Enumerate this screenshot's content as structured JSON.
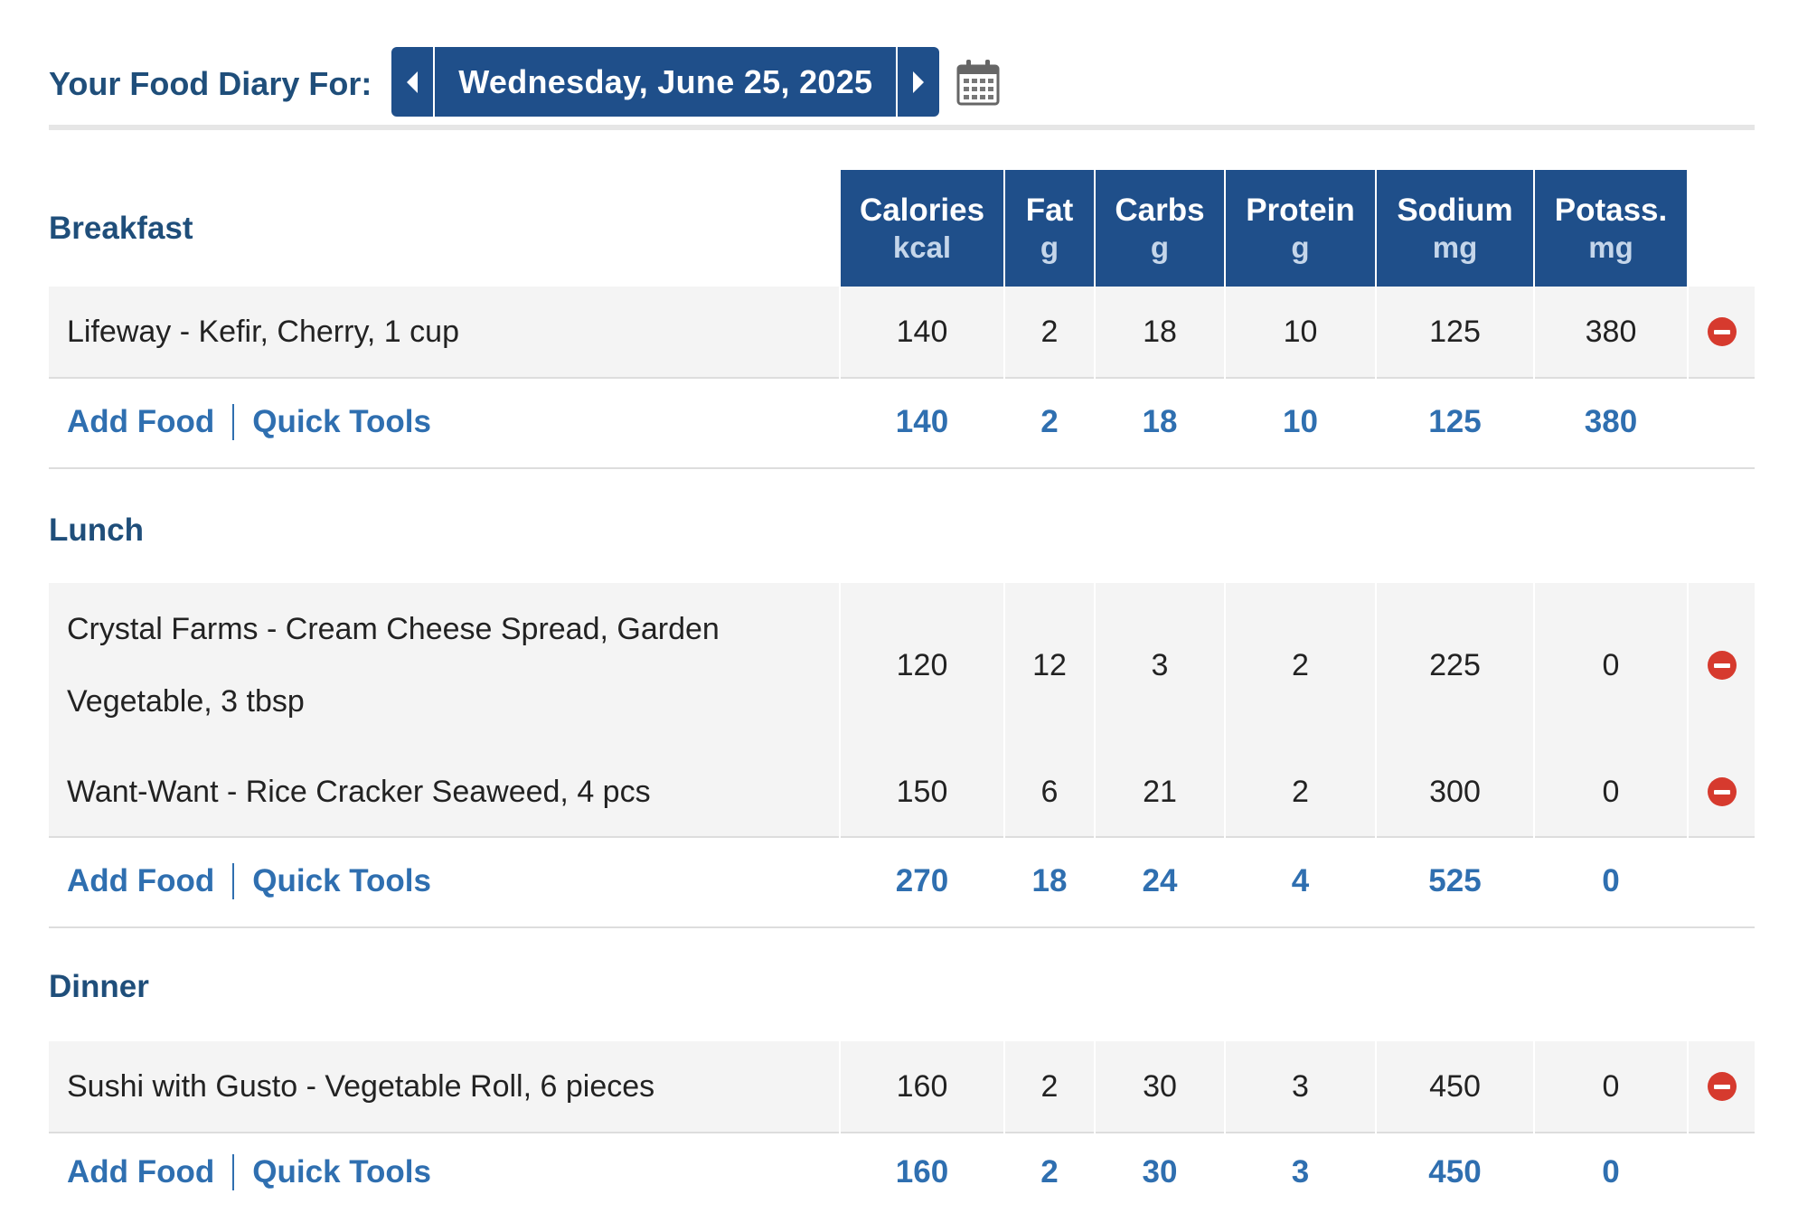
{
  "header": {
    "label": "Your Food Diary For:",
    "date": "Wednesday, June 25, 2025",
    "prev_icon": "triangle-left-icon",
    "next_icon": "triangle-right-icon",
    "calendar_icon": "calendar-icon"
  },
  "columns": [
    {
      "title": "Calories",
      "unit": "kcal"
    },
    {
      "title": "Fat",
      "unit": "g"
    },
    {
      "title": "Carbs",
      "unit": "g"
    },
    {
      "title": "Protein",
      "unit": "g"
    },
    {
      "title": "Sodium",
      "unit": "mg"
    },
    {
      "title": "Potass.",
      "unit": "mg"
    }
  ],
  "links": {
    "add_food": "Add Food",
    "quick_tools": "Quick Tools"
  },
  "colors": {
    "header_blue": "#1f4f8a",
    "link_blue": "#2f6fb0",
    "delete_red": "#d63a2e"
  },
  "meals": [
    {
      "name": "Breakfast",
      "foods": [
        {
          "name": "Lifeway - Kefir, Cherry, 1 cup",
          "values": [
            "140",
            "2",
            "18",
            "10",
            "125",
            "380"
          ]
        }
      ],
      "totals": [
        "140",
        "2",
        "18",
        "10",
        "125",
        "380"
      ]
    },
    {
      "name": "Lunch",
      "foods": [
        {
          "name": "Crystal Farms - Cream Cheese Spread, Garden Vegetable, 3 tbsp",
          "values": [
            "120",
            "12",
            "3",
            "2",
            "225",
            "0"
          ]
        },
        {
          "name": "Want-Want - Rice Cracker Seaweed, 4 pcs",
          "values": [
            "150",
            "6",
            "21",
            "2",
            "300",
            "0"
          ]
        }
      ],
      "totals": [
        "270",
        "18",
        "24",
        "4",
        "525",
        "0"
      ]
    },
    {
      "name": "Dinner",
      "foods": [
        {
          "name": "Sushi with Gusto - Vegetable Roll, 6 pieces",
          "values": [
            "160",
            "2",
            "30",
            "3",
            "450",
            "0"
          ]
        }
      ],
      "totals": [
        "160",
        "2",
        "30",
        "3",
        "450",
        "0"
      ]
    }
  ]
}
